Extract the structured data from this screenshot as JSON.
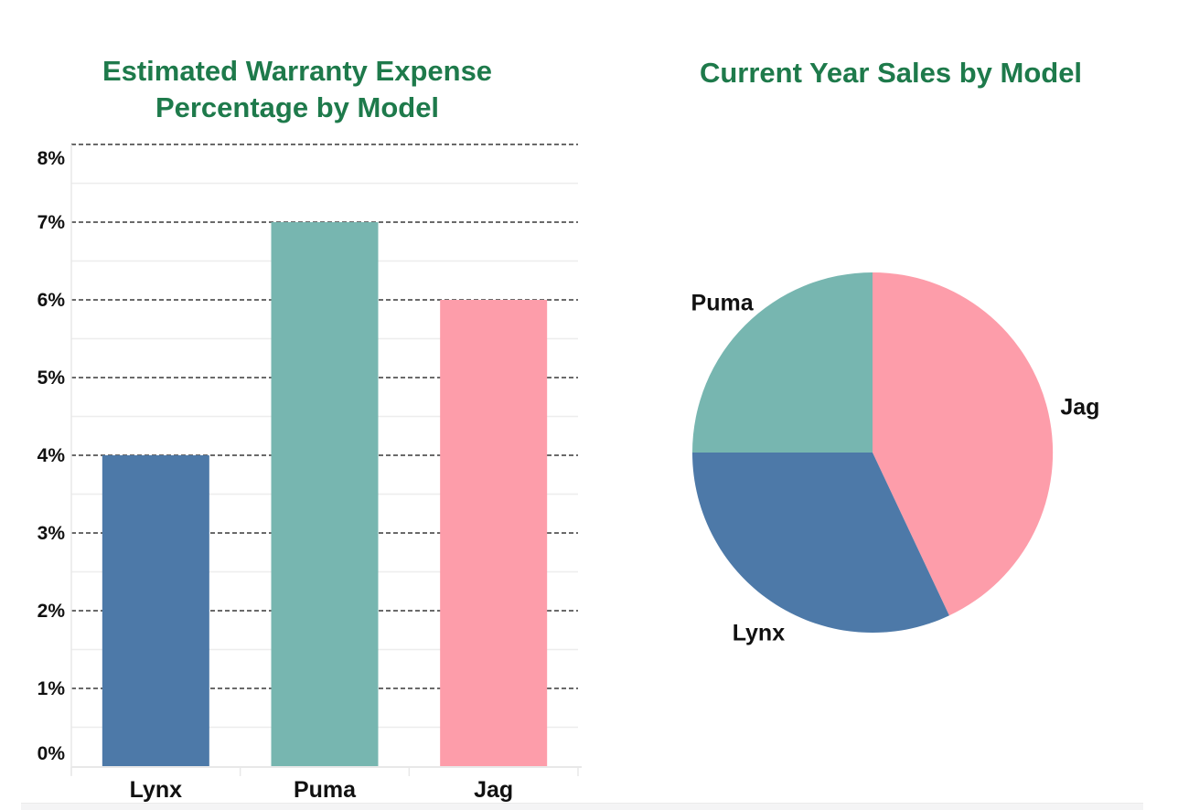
{
  "bar_chart": {
    "title": "Estimated Warranty Expense\nPercentage by Model"
  },
  "pie_chart": {
    "title": "Current Year Sales by Model"
  },
  "colors": {
    "title_green": "#1e7a4b",
    "lynx_blue": "#4d79a8",
    "puma_teal": "#77b6b0",
    "jag_pink": "#fd9daa",
    "major_gridline": "#555555",
    "minor_gridline": "#ededed",
    "axis_light": "#e8e8e8",
    "tick_label": "#111111",
    "scrollbar_track": "#f4f4f5"
  },
  "chart_data": [
    {
      "type": "bar",
      "title": "Estimated Warranty Expense Percentage by Model",
      "categories": [
        "Lynx",
        "Puma",
        "Jag"
      ],
      "values": [
        4,
        7,
        6
      ],
      "value_unit": "%",
      "xlabel": "",
      "ylabel": "",
      "ylim": [
        0,
        8
      ],
      "ytick_step": 1,
      "ytick_labels": [
        "0%",
        "1%",
        "2%",
        "3%",
        "4%",
        "5%",
        "6%",
        "7%",
        "8%"
      ],
      "grid": "horizontal, dashed major every 1%, faint solid minor every 0.5%",
      "legend": "none",
      "bar_colors": [
        "#4d79a8",
        "#77b6b0",
        "#fd9daa"
      ]
    },
    {
      "type": "pie",
      "title": "Current Year Sales by Model",
      "labels": [
        "Jag",
        "Lynx",
        "Puma"
      ],
      "values_pct": [
        43,
        32,
        25
      ],
      "colors": [
        "#fd9daa",
        "#4d79a8",
        "#77b6b0"
      ],
      "start_angle": "12 o'clock",
      "direction": "clockwise",
      "legend": "none, slices labeled outside"
    }
  ]
}
